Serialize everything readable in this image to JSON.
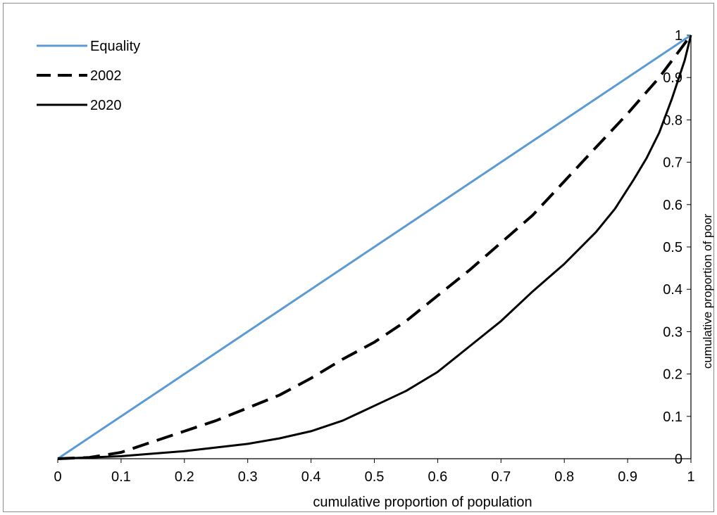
{
  "chart_data": {
    "type": "line",
    "xlabel": "cumulative proportion of population",
    "ylabel": "cumulative proportion of poor",
    "xlim": [
      0,
      1
    ],
    "ylim": [
      0,
      1
    ],
    "x_ticks": [
      "0",
      "0.1",
      "0.2",
      "0.3",
      "0.4",
      "0.5",
      "0.6",
      "0.7",
      "0.8",
      "0.9",
      "1"
    ],
    "y_ticks": [
      "0",
      "0.1",
      "0.2",
      "0.3",
      "0.4",
      "0.5",
      "0.6",
      "0.7",
      "0.8",
      "0.9",
      "1"
    ],
    "y_axis_side": "right",
    "grid": false,
    "legend_position": "top-left",
    "series": [
      {
        "name": "Equality",
        "style": "solid",
        "color": "#5b9bd5",
        "points": [
          [
            0,
            0
          ],
          [
            1,
            1
          ]
        ]
      },
      {
        "name": "2002",
        "style": "dashed",
        "color": "#000000",
        "points": [
          [
            0,
            0
          ],
          [
            0.05,
            0.003
          ],
          [
            0.1,
            0.015
          ],
          [
            0.15,
            0.04
          ],
          [
            0.2,
            0.065
          ],
          [
            0.25,
            0.09
          ],
          [
            0.3,
            0.12
          ],
          [
            0.35,
            0.15
          ],
          [
            0.4,
            0.19
          ],
          [
            0.45,
            0.235
          ],
          [
            0.5,
            0.275
          ],
          [
            0.55,
            0.325
          ],
          [
            0.6,
            0.385
          ],
          [
            0.65,
            0.445
          ],
          [
            0.7,
            0.51
          ],
          [
            0.75,
            0.575
          ],
          [
            0.8,
            0.655
          ],
          [
            0.85,
            0.735
          ],
          [
            0.9,
            0.815
          ],
          [
            0.95,
            0.9
          ],
          [
            1,
            1
          ]
        ]
      },
      {
        "name": "2020",
        "style": "solid",
        "color": "#000000",
        "points": [
          [
            0,
            0
          ],
          [
            0.1,
            0.006
          ],
          [
            0.2,
            0.018
          ],
          [
            0.3,
            0.035
          ],
          [
            0.35,
            0.048
          ],
          [
            0.4,
            0.065
          ],
          [
            0.45,
            0.09
          ],
          [
            0.5,
            0.125
          ],
          [
            0.55,
            0.16
          ],
          [
            0.6,
            0.205
          ],
          [
            0.65,
            0.265
          ],
          [
            0.7,
            0.325
          ],
          [
            0.75,
            0.395
          ],
          [
            0.8,
            0.46
          ],
          [
            0.85,
            0.535
          ],
          [
            0.88,
            0.59
          ],
          [
            0.91,
            0.66
          ],
          [
            0.93,
            0.71
          ],
          [
            0.95,
            0.77
          ],
          [
            0.97,
            0.85
          ],
          [
            0.99,
            0.94
          ],
          [
            1,
            1
          ]
        ]
      }
    ]
  }
}
